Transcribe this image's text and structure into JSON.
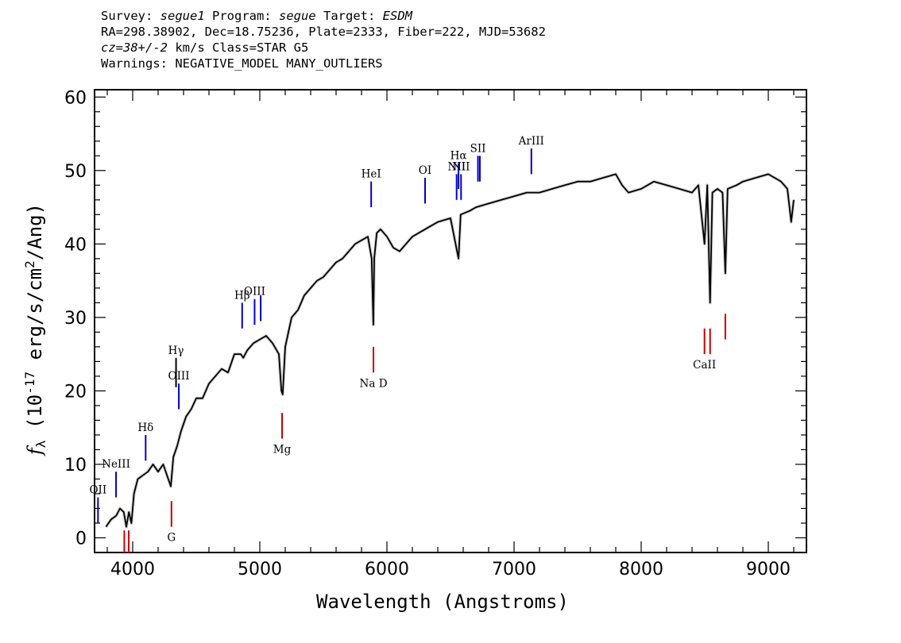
{
  "header": {
    "survey_label": "Survey: ",
    "survey": "segue1",
    "program_label": " Program: ",
    "program": "segue",
    "target_label": " Target: ",
    "target": "ESDM",
    "line2": "RA=298.38902, Dec=18.75236, Plate=2333, Fiber=222, MJD=53682",
    "redshift": "cz=38+/-2",
    "redshift_unit": " km/s Class=STAR G5",
    "warnings": "Warnings: NEGATIVE_MODEL MANY_OUTLIERS"
  },
  "chart_data": {
    "type": "line",
    "title": "",
    "xlabel": "Wavelength (Angstroms)",
    "ylabel": "f_λ (10^-17 erg/s/cm^2/Ang)",
    "xlim": [
      3700,
      9300
    ],
    "ylim": [
      -2,
      61
    ],
    "xticks": [
      4000,
      5000,
      6000,
      7000,
      8000,
      9000
    ],
    "yticks": [
      0,
      10,
      20,
      30,
      40,
      50,
      60
    ],
    "grid": false,
    "series": [
      {
        "color": "#000000",
        "x": [
          3790,
          3830,
          3870,
          3900,
          3930,
          3950,
          3970,
          3990,
          4010,
          4040,
          4080,
          4120,
          4160,
          4200,
          4240,
          4280,
          4300,
          4320,
          4350,
          4380,
          4420,
          4460,
          4500,
          4550,
          4600,
          4650,
          4700,
          4750,
          4800,
          4850,
          4870,
          4900,
          4950,
          5000,
          5050,
          5100,
          5150,
          5170,
          5180,
          5200,
          5250,
          5300,
          5350,
          5400,
          5450,
          5500,
          5550,
          5600,
          5650,
          5700,
          5750,
          5800,
          5850,
          5880,
          5893,
          5900,
          5920,
          5950,
          6000,
          6050,
          6100,
          6150,
          6200,
          6300,
          6400,
          6500,
          6563,
          6580,
          6650,
          6700,
          6800,
          6900,
          7000,
          7100,
          7200,
          7300,
          7400,
          7500,
          7600,
          7700,
          7800,
          7850,
          7900,
          8000,
          8100,
          8200,
          8300,
          8400,
          8450,
          8498,
          8520,
          8542,
          8560,
          8600,
          8640,
          8662,
          8680,
          8750,
          8800,
          8900,
          9000,
          9050,
          9100,
          9150,
          9180,
          9200
        ],
        "y": [
          1.5,
          2.5,
          3.0,
          4.0,
          3.5,
          1.5,
          3.5,
          2.0,
          6.0,
          8.0,
          8.5,
          9.0,
          10.0,
          9.0,
          10.0,
          8.0,
          7.0,
          11.0,
          12.5,
          14.5,
          16.5,
          17.5,
          19.0,
          19.0,
          21.0,
          22.0,
          23.0,
          22.5,
          25.0,
          25.0,
          24.5,
          25.5,
          26.5,
          27.0,
          27.5,
          26.5,
          25.0,
          20.0,
          19.5,
          26.0,
          30.0,
          31.0,
          33.0,
          34.0,
          35.0,
          35.5,
          36.5,
          37.5,
          38.0,
          39.0,
          40.0,
          40.5,
          41.0,
          38.0,
          29.0,
          38.0,
          41.5,
          42.0,
          41.0,
          39.5,
          39.0,
          40.0,
          41.0,
          42.0,
          43.0,
          43.5,
          38.0,
          44.0,
          44.5,
          45.0,
          45.5,
          46.0,
          46.5,
          47.0,
          47.0,
          47.5,
          48.0,
          48.5,
          48.5,
          49.0,
          49.5,
          48.0,
          47.0,
          47.5,
          48.5,
          48.0,
          47.5,
          47.0,
          48.0,
          40.0,
          48.0,
          32.0,
          47.0,
          47.5,
          47.0,
          36.0,
          47.5,
          48.0,
          48.5,
          49.0,
          49.5,
          49.0,
          48.5,
          47.5,
          43.0,
          46.0
        ]
      }
    ],
    "line_markers": [
      {
        "label": "OII",
        "x": 3727,
        "color": "#0000cc",
        "y0": 2,
        "y1": 5.5
      },
      {
        "label": "NeIII",
        "x": 3869,
        "color": "#0000cc",
        "y0": 5.5,
        "y1": 9
      },
      {
        "label": "Hδ",
        "x": 4102,
        "color": "#0000cc",
        "y0": 10.5,
        "y1": 14
      },
      {
        "label": "Hγ",
        "x": 4341,
        "color": "#000000",
        "y0": 20.5,
        "y1": 24.5
      },
      {
        "label": "OIII",
        "x": 4363,
        "color": "#0000cc",
        "y0": 17.5,
        "y1": 21
      },
      {
        "label": "Hβ",
        "x": 4861,
        "color": "#0000cc",
        "y0": 28.5,
        "y1": 32
      },
      {
        "label": "OIII",
        "x": 4959,
        "color": "#0000cc",
        "y0": 29,
        "y1": 32.5
      },
      {
        "label": "",
        "x": 5007,
        "color": "#0000cc",
        "y0": 29.5,
        "y1": 33
      },
      {
        "label": "HeI",
        "x": 5876,
        "color": "#0000cc",
        "y0": 45,
        "y1": 48.5
      },
      {
        "label": "OI",
        "x": 6300,
        "color": "#0000cc",
        "y0": 45.5,
        "y1": 49
      },
      {
        "label": "NII",
        "x": 6548,
        "color": "#0000cc",
        "y0": 46,
        "y1": 49.5
      },
      {
        "label": "Hα",
        "x": 6563,
        "color": "#0000cc",
        "y0": 47.5,
        "y1": 51
      },
      {
        "label": "NII",
        "x": 6583,
        "color": "#0000cc",
        "y0": 46,
        "y1": 49.5
      },
      {
        "label": "SII",
        "x": 6716,
        "color": "#0000cc",
        "y0": 48.5,
        "y1": 52
      },
      {
        "label": "",
        "x": 6731,
        "color": "#0000cc",
        "y0": 48.5,
        "y1": 52
      },
      {
        "label": "ArIII",
        "x": 7136,
        "color": "#0000cc",
        "y0": 49.5,
        "y1": 53
      },
      {
        "label": "",
        "x": 3934,
        "color": "#cc0000",
        "y0": -2,
        "y1": 1
      },
      {
        "label": "",
        "x": 3969,
        "color": "#cc0000",
        "y0": -2,
        "y1": 1
      },
      {
        "label": "G",
        "x": 4305,
        "color": "#cc0000",
        "y0": 1.5,
        "y1": 5
      },
      {
        "label": "Mg",
        "x": 5175,
        "color": "#cc0000",
        "y0": 13.5,
        "y1": 17
      },
      {
        "label": "Na D",
        "x": 5894,
        "color": "#cc0000",
        "y0": 22.5,
        "y1": 26
      },
      {
        "label": "CaII",
        "x": 8498,
        "color": "#cc0000",
        "y0": 25,
        "y1": 28.5
      },
      {
        "label": "",
        "x": 8542,
        "color": "#cc0000",
        "y0": 25,
        "y1": 28.5
      },
      {
        "label": "",
        "x": 8662,
        "color": "#cc0000",
        "y0": 27,
        "y1": 30.5
      }
    ]
  }
}
